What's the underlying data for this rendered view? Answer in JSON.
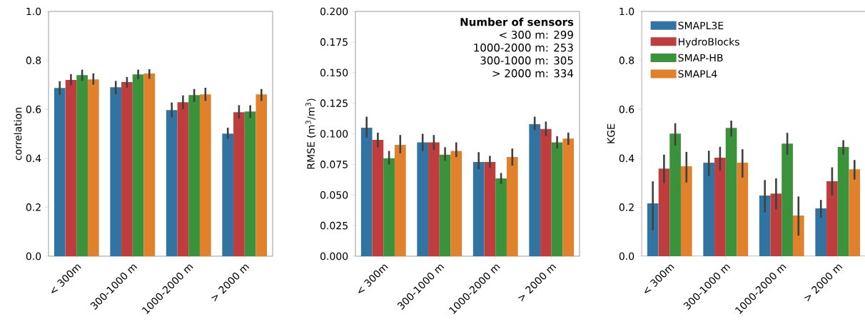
{
  "chart_data": [
    {
      "type": "bar",
      "ylabel": "correlation",
      "categories": [
        "< 300m",
        "300-1000 m",
        "1000-2000 m",
        "> 2000 m"
      ],
      "ylim": [
        0,
        1.0
      ],
      "yticks": [
        {
          "value": 0,
          "label": "0.0"
        },
        {
          "value": 0.2,
          "label": "0.2"
        },
        {
          "value": 0.4,
          "label": "0.4"
        },
        {
          "value": 0.6,
          "label": "0.6"
        },
        {
          "value": 0.8,
          "label": "0.8"
        },
        {
          "value": 1.0,
          "label": "1.0"
        }
      ],
      "grid": false,
      "series": [
        {
          "color": "#3274a1",
          "values": [
            0.687,
            0.69,
            0.597,
            0.501
          ],
          "errors": [
            [
              0.66,
              0.715
            ],
            [
              0.662,
              0.716
            ],
            [
              0.567,
              0.628
            ],
            [
              0.479,
              0.525
            ]
          ]
        },
        {
          "color": "#c03d3e",
          "values": [
            0.72,
            0.711,
            0.629,
            0.588
          ],
          "errors": [
            [
              0.698,
              0.744
            ],
            [
              0.688,
              0.732
            ],
            [
              0.601,
              0.657
            ],
            [
              0.563,
              0.617
            ]
          ]
        },
        {
          "color": "#3a923a",
          "values": [
            0.74,
            0.743,
            0.658,
            0.591
          ],
          "errors": [
            [
              0.716,
              0.762
            ],
            [
              0.723,
              0.762
            ],
            [
              0.63,
              0.683
            ],
            [
              0.564,
              0.617
            ]
          ]
        },
        {
          "color": "#e1812c",
          "values": [
            0.722,
            0.746,
            0.661,
            0.661
          ],
          "errors": [
            [
              0.701,
              0.747
            ],
            [
              0.725,
              0.764
            ],
            [
              0.634,
              0.688
            ],
            [
              0.634,
              0.683
            ]
          ]
        }
      ]
    },
    {
      "type": "bar",
      "ylabel": "RMSE (m$^{3}$/m$^{3}$)",
      "categories": [
        "< 300m",
        "300-1000 m",
        "1000-2000 m",
        "> 2000 m"
      ],
      "ylim": [
        0,
        0.2
      ],
      "yticks": [
        {
          "value": 0,
          "label": "0.000"
        },
        {
          "value": 0.025,
          "label": "0.025"
        },
        {
          "value": 0.05,
          "label": "0.050"
        },
        {
          "value": 0.075,
          "label": "0.075"
        },
        {
          "value": 0.1,
          "label": "0.100"
        },
        {
          "value": 0.125,
          "label": "0.125"
        },
        {
          "value": 0.15,
          "label": "0.150"
        },
        {
          "value": 0.175,
          "label": "0.175"
        },
        {
          "value": 0.2,
          "label": "0.200"
        }
      ],
      "grid": false,
      "annotations": [
        "Number of sensors",
        "< 300 m: 299",
        "1000-2000 m: 253",
        "300-1000 m: 305",
        "> 2000 m: 334"
      ],
      "series": [
        {
          "color": "#3274a1",
          "values": [
            0.105,
            0.093,
            0.077,
            0.108
          ],
          "errors": [
            [
              0.097,
              0.114
            ],
            [
              0.086,
              0.1
            ],
            [
              0.071,
              0.085
            ],
            [
              0.103,
              0.114
            ]
          ]
        },
        {
          "color": "#c03d3e",
          "values": [
            0.095,
            0.093,
            0.077,
            0.104
          ],
          "errors": [
            [
              0.089,
              0.101
            ],
            [
              0.087,
              0.099
            ],
            [
              0.072,
              0.082
            ],
            [
              0.098,
              0.11
            ]
          ]
        },
        {
          "color": "#3a923a",
          "values": [
            0.08,
            0.083,
            0.0635,
            0.093
          ],
          "errors": [
            [
              0.075,
              0.086
            ],
            [
              0.078,
              0.089
            ],
            [
              0.059,
              0.068
            ],
            [
              0.088,
              0.098
            ]
          ]
        },
        {
          "color": "#e1812c",
          "values": [
            0.091,
            0.086,
            0.081,
            0.096
          ],
          "errors": [
            [
              0.084,
              0.099
            ],
            [
              0.081,
              0.093
            ],
            [
              0.074,
              0.088
            ],
            [
              0.091,
              0.101
            ]
          ]
        }
      ]
    },
    {
      "type": "bar",
      "ylabel": "KGE",
      "categories": [
        "< 300m",
        "300-1000 m",
        "1000-2000 m",
        "> 2000 m"
      ],
      "ylim": [
        0,
        1.0
      ],
      "yticks": [
        {
          "value": 0,
          "label": "0.0"
        },
        {
          "value": 0.2,
          "label": "0.2"
        },
        {
          "value": 0.4,
          "label": "0.4"
        },
        {
          "value": 0.6,
          "label": "0.6"
        },
        {
          "value": 0.8,
          "label": "0.8"
        },
        {
          "value": 1.0,
          "label": "1.0"
        }
      ],
      "grid": false,
      "legend": "top left",
      "series": [
        {
          "name": "SMAPL3E",
          "color": "#3274a1",
          "values": [
            0.216,
            0.382,
            0.248,
            0.195
          ],
          "errors": [
            [
              0.106,
              0.306
            ],
            [
              0.327,
              0.431
            ],
            [
              0.179,
              0.311
            ],
            [
              0.157,
              0.23
            ]
          ]
        },
        {
          "name": "HydroBlocks",
          "color": "#c03d3e",
          "values": [
            0.358,
            0.402,
            0.256,
            0.306
          ],
          "errors": [
            [
              0.298,
              0.415
            ],
            [
              0.349,
              0.447
            ],
            [
              0.192,
              0.318
            ],
            [
              0.248,
              0.363
            ]
          ]
        },
        {
          "name": "SMAP-HB",
          "color": "#3a923a",
          "values": [
            0.501,
            0.524,
            0.46,
            0.446
          ],
          "errors": [
            [
              0.452,
              0.543
            ],
            [
              0.489,
              0.554
            ],
            [
              0.414,
              0.504
            ],
            [
              0.415,
              0.474
            ]
          ]
        },
        {
          "name": "SMAPL4",
          "color": "#e1812c",
          "values": [
            0.367,
            0.382,
            0.166,
            0.355
          ],
          "errors": [
            [
              0.301,
              0.426
            ],
            [
              0.321,
              0.437
            ],
            [
              0.084,
              0.244
            ],
            [
              0.313,
              0.393
            ]
          ]
        }
      ]
    }
  ]
}
